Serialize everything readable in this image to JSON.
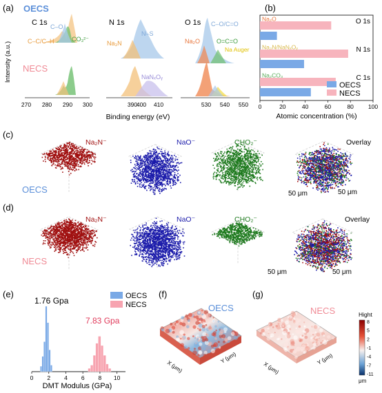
{
  "panels": {
    "a": {
      "letter": "(a)",
      "oecs_label": "OECS",
      "necs_label": "NECS",
      "y_axis_label": "Intensity (a.u.)",
      "x_axis_label": "Binding energy (eV)",
      "c1s": {
        "title": "C 1s",
        "peak_labels": [
          "C–O",
          "C–C/C–H",
          "CO₃²⁻"
        ],
        "ticks": [
          "270",
          "280",
          "290",
          "300"
        ]
      },
      "n1s": {
        "title": "N 1s",
        "peak_labels": [
          "N–S",
          "Na₃N",
          "NaNₓOᵧ"
        ],
        "ticks": [
          "390",
          "400",
          "410"
        ]
      },
      "o1s": {
        "title": "O 1s",
        "peak_labels": [
          "C–O/C=O",
          "Na₂O",
          "O=C=O",
          "Na Auger"
        ],
        "ticks": [
          "530",
          "540",
          "550"
        ]
      }
    },
    "b": {
      "letter": "(b)",
      "x_axis_label": "Atomic concentration (%)",
      "legend": [
        "OECS",
        "NECS"
      ]
    },
    "c": {
      "letter": "(c)",
      "sample": "OECS",
      "ions": [
        "Na₂N⁻",
        "NaO⁻",
        "CHO₂⁻",
        "Overlay"
      ],
      "scale": [
        "50 μm",
        "50 μm"
      ]
    },
    "d": {
      "letter": "(d)",
      "sample": "NECS",
      "ions": [
        "Na₂N⁻",
        "NaO⁻",
        "CHO₂⁻",
        "Overlay"
      ],
      "scale": [
        "50 μm",
        "50 μm"
      ]
    },
    "e": {
      "letter": "(e)",
      "x_axis_label": "DMT Modulus (GPa)",
      "ticks": [
        "0",
        "2",
        "4",
        "6",
        "8",
        "10"
      ],
      "legend": [
        "OECS",
        "NECS"
      ],
      "annotations": [
        "1.76 Gpa",
        "7.83 Gpa"
      ]
    },
    "f": {
      "letter": "(f)",
      "label": "OECS",
      "x_label": "X (μm)",
      "y_label": "Y (μm)"
    },
    "g": {
      "letter": "(g)",
      "label": "NECS",
      "x_label": "X (μm)",
      "y_label": "Y (μm)",
      "colorbar_title": "Hight",
      "colorbar_ticks": [
        "8",
        "5",
        "2",
        "-1",
        "-4",
        "-7",
        "-11"
      ],
      "colorbar_unit": "μm"
    }
  },
  "colors": {
    "oecs": "#5b8fd9",
    "necs": "#f08a95",
    "na2n": "#a01010",
    "nao": "#1a1aaa",
    "cho2": "#1e7a1e"
  },
  "chart_data": [
    {
      "type": "bar",
      "title": "",
      "xlabel": "Atomic concentration (%)",
      "ylabel": "",
      "xlim": [
        0,
        100
      ],
      "categories": [
        "O 1s",
        "N 1s",
        "C 1s"
      ],
      "category_labels": [
        "Na₂O",
        "Na₃N/NaNₓOᵧ",
        "Na₂CO₃"
      ],
      "series": [
        {
          "name": "OECS",
          "values": [
            15,
            39,
            45
          ]
        },
        {
          "name": "NECS",
          "values": [
            63,
            78,
            67
          ]
        }
      ],
      "ticks": [
        0,
        20,
        40,
        60,
        80,
        100
      ],
      "legend": "bottom-right"
    },
    {
      "type": "bar",
      "title": "",
      "xlabel": "DMT Modulus (GPa)",
      "ylabel": "",
      "xlim": [
        0,
        11
      ],
      "series": [
        {
          "name": "OECS",
          "bins": [
            [
              1.0,
              1.2,
              10
            ],
            [
              1.2,
              1.4,
              28
            ],
            [
              1.4,
              1.6,
              55
            ],
            [
              1.6,
              1.8,
              120
            ],
            [
              1.8,
              2.0,
              90
            ],
            [
              2.0,
              2.2,
              40
            ],
            [
              2.2,
              2.4,
              12
            ]
          ],
          "annotation": "1.76 Gpa"
        },
        {
          "name": "NECS",
          "bins": [
            [
              6.6,
              6.9,
              6
            ],
            [
              6.9,
              7.2,
              12
            ],
            [
              7.2,
              7.5,
              30
            ],
            [
              7.5,
              7.8,
              52
            ],
            [
              7.8,
              8.1,
              65
            ],
            [
              8.1,
              8.4,
              48
            ],
            [
              8.4,
              8.7,
              30
            ],
            [
              8.7,
              9.0,
              14
            ],
            [
              9.0,
              9.3,
              6
            ]
          ],
          "annotation": "7.83 Gpa"
        }
      ],
      "legend": "top-right"
    }
  ]
}
